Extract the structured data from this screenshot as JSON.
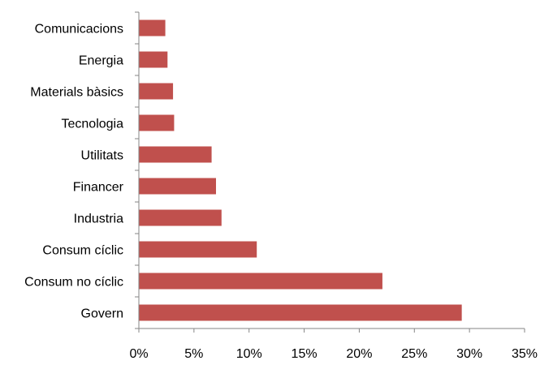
{
  "chart_data": {
    "type": "bar",
    "orientation": "horizontal",
    "categories": [
      "Comunicacions",
      "Energia",
      "Materials bàsics",
      "Tecnologia",
      "Utilitats",
      "Financer",
      "Industria",
      "Consum cíclic",
      "Consum no cíclic",
      "Govern"
    ],
    "values": [
      2.4,
      2.6,
      3.1,
      3.2,
      6.6,
      7.0,
      7.5,
      10.7,
      22.1,
      29.3
    ],
    "xlim": [
      0,
      35
    ],
    "x_ticks": [
      "0%",
      "5%",
      "10%",
      "15%",
      "20%",
      "25%",
      "30%",
      "35%"
    ],
    "value_unit": "%",
    "title": "",
    "xlabel": "",
    "ylabel": "",
    "grid": false,
    "legend": "none",
    "bar_color": "#c0504d"
  }
}
